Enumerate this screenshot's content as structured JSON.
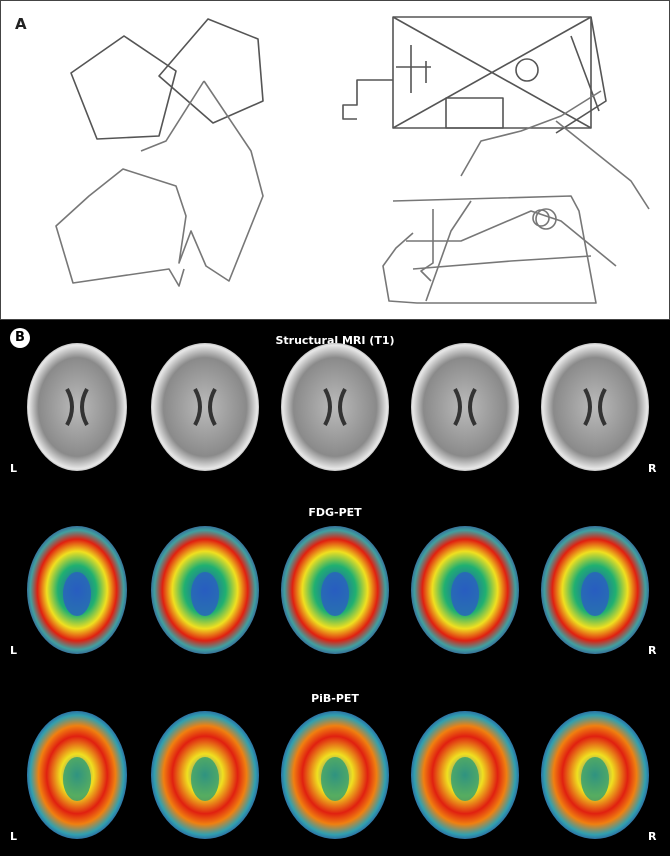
{
  "panel_a": {
    "letter": "A"
  },
  "panel_b": {
    "letter": "B",
    "rows": [
      {
        "title": "Structural MRI (T1)",
        "left": "L",
        "right": "R",
        "modality": "mri"
      },
      {
        "title": "FDG-PET",
        "left": "L",
        "right": "R",
        "modality": "fdg"
      },
      {
        "title": "PiB-PET",
        "left": "L",
        "right": "R",
        "modality": "pib"
      }
    ]
  },
  "colors": {
    "pet_high": "#e02010",
    "pet_mid": "#f0e020",
    "pet_low": "#20a050",
    "pet_bg": "#2030a0"
  }
}
